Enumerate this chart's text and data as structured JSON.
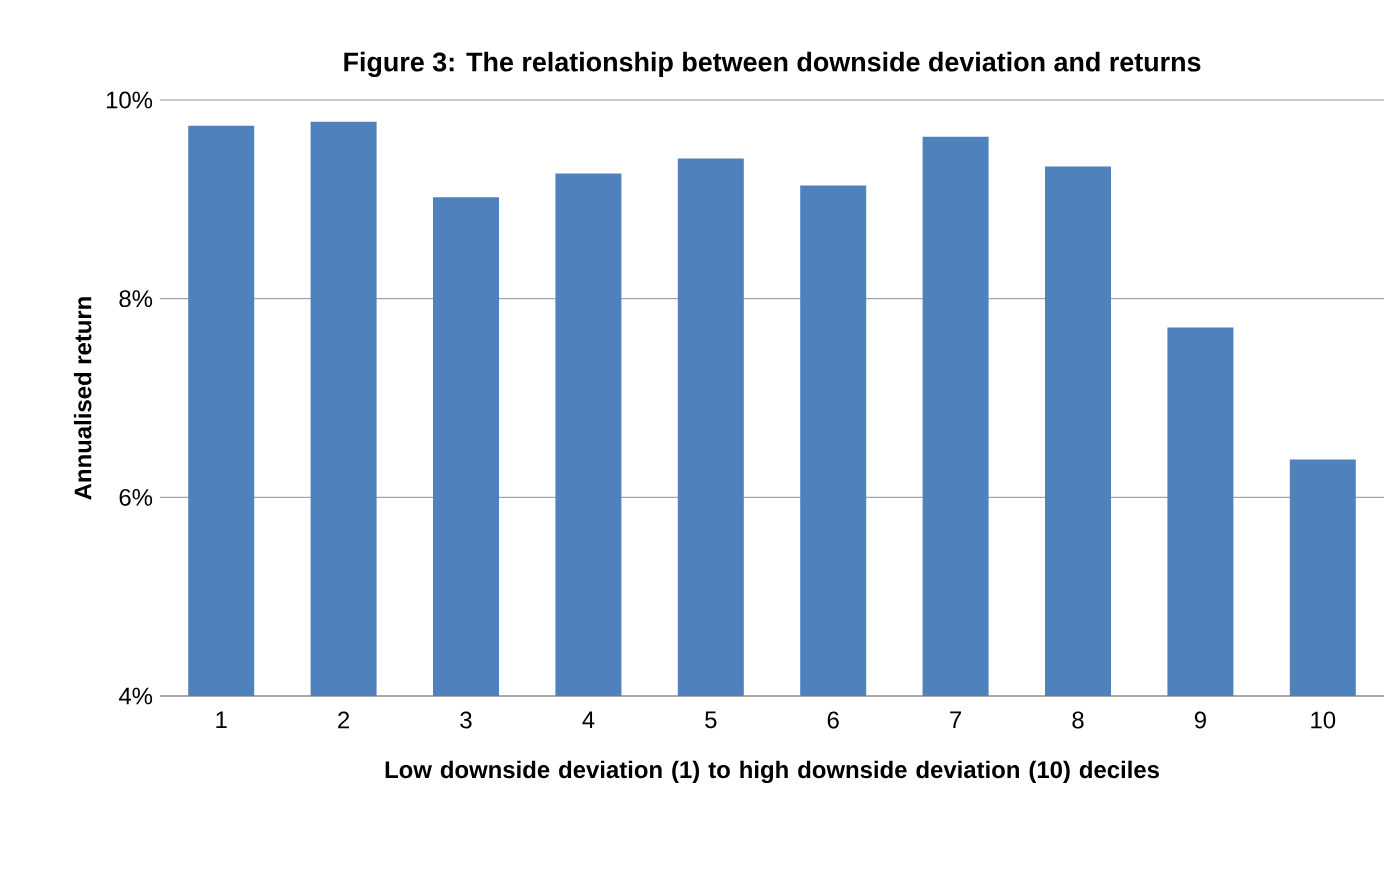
{
  "chart_data": {
    "type": "bar",
    "title": "Figure 3: The relationship between downside deviation and returns",
    "xlabel": "Low downside deviation (1) to high downside deviation (10) deciles",
    "ylabel": "Annualised return",
    "categories": [
      "1",
      "2",
      "3",
      "4",
      "5",
      "6",
      "7",
      "8",
      "9",
      "10"
    ],
    "values": [
      9.74,
      9.78,
      9.02,
      9.26,
      9.41,
      9.14,
      9.63,
      9.33,
      7.71,
      6.38
    ],
    "color": "#4f81bd",
    "ylim": [
      4,
      10
    ],
    "yticks": [
      {
        "value": 4,
        "label": "4%"
      },
      {
        "value": 6,
        "label": "6%"
      },
      {
        "value": 8,
        "label": "8%"
      },
      {
        "value": 10,
        "label": "10%"
      }
    ],
    "grid": "y"
  }
}
